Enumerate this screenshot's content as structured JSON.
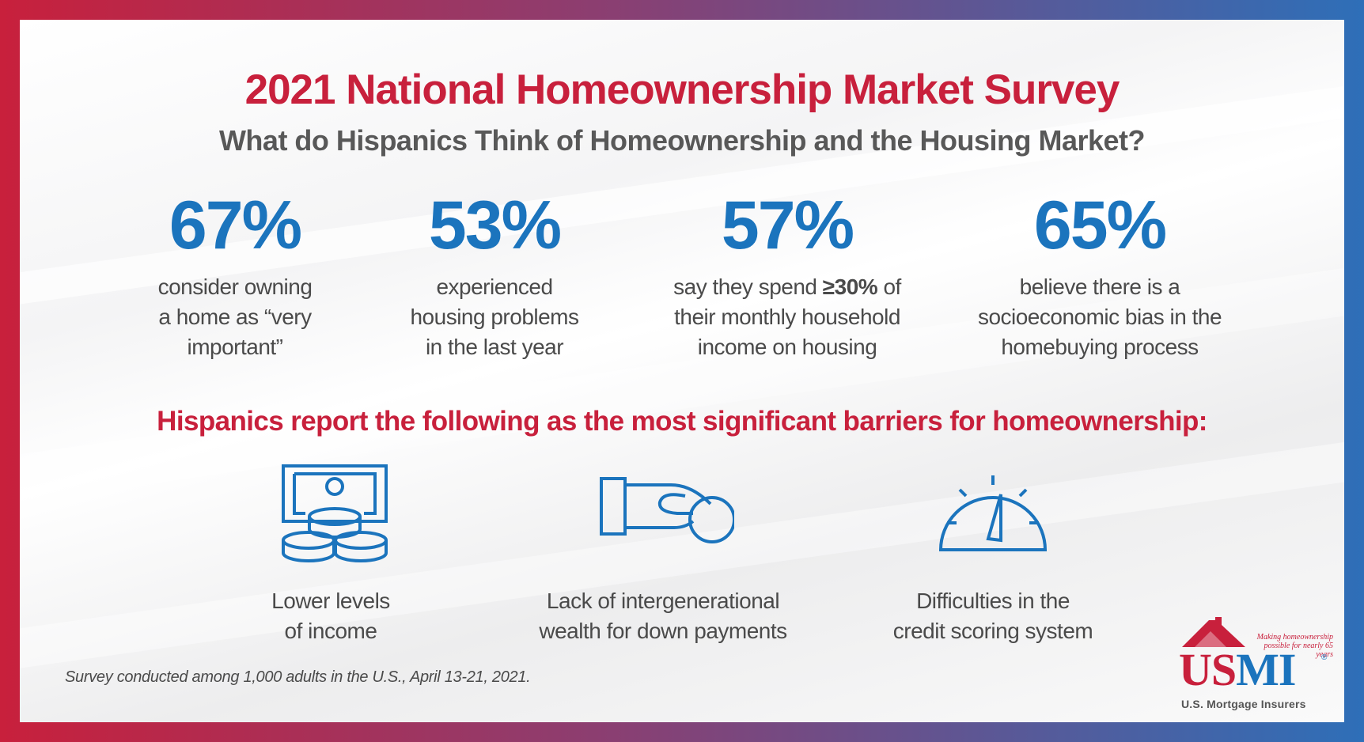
{
  "title": "2021 National Homeownership Market Survey",
  "subtitle": "What do Hispanics Think of Homeownership and the Housing Market?",
  "stats": [
    {
      "value": "67%",
      "lines": [
        "consider owning",
        "a home as “very",
        "important”"
      ]
    },
    {
      "value": "53%",
      "lines": [
        "experienced",
        "housing problems",
        "in the last year"
      ]
    },
    {
      "value": "57%",
      "line1_pre": "say they spend ",
      "line1_bold": "≥30%",
      "line1_post": " of",
      "lines": [
        "their monthly household",
        "income on housing"
      ]
    },
    {
      "value": "65%",
      "lines": [
        "believe there is a",
        "socioeconomic bias in the",
        "homebuying process"
      ]
    }
  ],
  "barriers_heading": "Hispanics report the following as the most significant barriers for homeownership:",
  "barriers": [
    {
      "icon": "money-coins-icon",
      "lines": [
        "Lower levels",
        "of income"
      ]
    },
    {
      "icon": "hand-coin-icon",
      "lines": [
        "Lack of intergenerational",
        "wealth for down payments"
      ]
    },
    {
      "icon": "gauge-icon",
      "lines": [
        "Difficulties in the",
        "credit scoring system"
      ]
    }
  ],
  "footnote": "Survey conducted among 1,000 adults in the U.S., April 13-21, 2021.",
  "logo": {
    "tagline_1": "Making homeownership",
    "tagline_2": "possible for nearly 65 years",
    "word_us": "US",
    "word_mi": "MI",
    "registered": "®",
    "subtext": "U.S. Mortgage Insurers"
  },
  "colors": {
    "red": "#c8203c",
    "blue": "#1b74bd",
    "gray": "#4a4a4a"
  }
}
